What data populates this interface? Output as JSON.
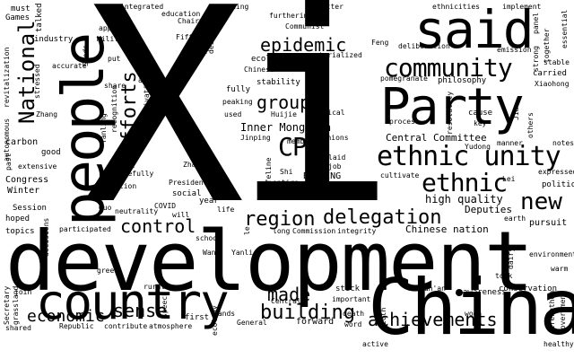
{
  "word_cloud": {
    "background_color": "#ffffff",
    "text_color": "#000000",
    "words": {
      "xi": "Xi",
      "development": "development",
      "china": "China",
      "party": "Party",
      "said": "said",
      "people": "people",
      "country": "country",
      "ethnic_unity": "ethnic unity",
      "community": "community",
      "ethnic": "ethnic",
      "delegation": "delegation",
      "national": "National",
      "region": "region",
      "epidemic": "epidemic",
      "efforts": "Efforts",
      "cpc": "CPC",
      "groups": "groups",
      "new": "new",
      "control": "control",
      "made": "made",
      "building": "building",
      "achievements": "achievements",
      "sense": "sense",
      "economic": "economic",
      "inner_mongolia": "Inner Mongolia",
      "central_committee": "Central Committee",
      "high_quality": "high quality",
      "chinese_nation": "Chinese nation",
      "deputies": "Deputies",
      "beijing": "BEIJING",
      "work": "Work",
      "carbon": "carbon",
      "congress": "Congress",
      "winter": "Winter",
      "session": "Session",
      "hoped": "hoped",
      "topics": "topics",
      "games": "Games",
      "must": "must",
      "talked": "talked",
      "industry": "industry",
      "military": "Military",
      "education": "education",
      "chairman": "Chairman",
      "fifth": "Fifth",
      "integrated": "integrated",
      "approval": "approval",
      "convening": "convening",
      "furthering": "furthering",
      "communist": "Communist",
      "ecological": "ecological",
      "materialized": "materialized",
      "chinese": "Chinese",
      "stability": "stability",
      "fully": "fully",
      "peaking": "peaking",
      "weal": "weal",
      "used": "used",
      "huijie": "Huijie",
      "chemical": "chemical",
      "jinping": "Jinping",
      "member": "member",
      "opinions": "opinions",
      "laid": "laid",
      "job": "job",
      "better": "better",
      "ethnicities": "ethnicities",
      "implement": "implement",
      "feng": "Feng",
      "deliberation": "deliberation",
      "pomegranate": "pomegranate",
      "philosophy": "philosophy",
      "process": "process",
      "cause": "cause",
      "key": "key",
      "yudong": "Yudong",
      "emission": "emission",
      "stable": "stable",
      "carried": "carried",
      "xiaohong": "Xiaohong",
      "strong": "strong",
      "together": "together",
      "essential": "essential",
      "panel": "panel",
      "manner": "manner",
      "notes": "notes",
      "expressed": "expressed",
      "political": "political",
      "cultivate": "cultivate",
      "lei": "Lei",
      "pursuit": "pursuit",
      "earth": "earth",
      "environment": "environment",
      "warm": "warm",
      "conservation": "conservation",
      "took": "took",
      "dairy": "dairy",
      "awareness": "awareness",
      "runan": "Run'an",
      "healthy": "healthy",
      "government": "Government",
      "strengthen": "strengthen",
      "active": "active",
      "word": "word",
      "death": "death",
      "twentieth": "20th",
      "woe": "woe",
      "general": "General",
      "forward": "forward",
      "central": "Central",
      "important": "important",
      "stick": "stick",
      "commission": "Commission",
      "integrity": "integrity",
      "long": "long",
      "listened": "listened",
      "zhao": "Zhao",
      "report": "Report",
      "president": "President",
      "social": "social",
      "year": "year",
      "life": "life",
      "covid": "COVID",
      "will": "will",
      "guo": "Guo",
      "neutrality": "neutrality",
      "school": "school",
      "wang": "Wang",
      "yanli": "Yanli",
      "greet": "greet",
      "rural": "rural",
      "atmosphere": "atmosphere",
      "first": "first",
      "contribute": "contribute",
      "republic": "Republic",
      "shared": "shared",
      "secretary": "Secretary",
      "grassland": "grassland",
      "join": "join",
      "participated": "participated",
      "extensive": "extensive",
      "good": "good",
      "past": "past",
      "autonomous": "autonomous",
      "revitalization": "revitalization",
      "zhang": "Zhang",
      "stressed": "stressed",
      "accurate": "accurate",
      "seeds": "Seeds",
      "put": "put",
      "thirteenth": "13th",
      "added": "added",
      "share": "share",
      "yanling": "Yanling",
      "recognition": "recognition",
      "cultivating": "Cultivating",
      "saturday": "Saturday",
      "carefully": "carefully",
      "foundation": "foundation",
      "decisions": "decisions",
      "describe": "describe",
      "coal": "coal",
      "lifeline": "lifeline",
      "shi": "Shi",
      "entire": "entire",
      "hands": "hands",
      "ecology": "ecology",
      "speech": "speech",
      "resolutely": "resolutely",
      "others": "others",
      "jia": "Jia",
      "le": "le"
    }
  }
}
